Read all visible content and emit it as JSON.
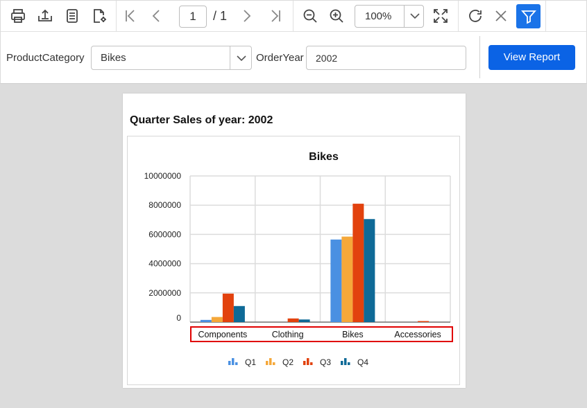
{
  "toolbar": {
    "page_current": "1",
    "page_total": "/ 1",
    "zoom": "100%"
  },
  "params": {
    "category_label": "ProductCategory",
    "category_value": "Bikes",
    "year_label": "OrderYear",
    "year_value": "2002",
    "view_button": "View Report"
  },
  "report": {
    "title": "Quarter Sales of year: 2002"
  },
  "colors": {
    "accent": "#1a73e8",
    "button": "#0b63e5",
    "highlight_box": "#e00000"
  },
  "chart_data": {
    "type": "bar",
    "title": "Bikes",
    "categories": [
      "Components",
      "Clothing",
      "Bikes",
      "Accessories"
    ],
    "series": [
      {
        "name": "Q1",
        "color": "#4a90e2",
        "values": [
          150000,
          0,
          5650000,
          0
        ]
      },
      {
        "name": "Q2",
        "color": "#f5a83a",
        "values": [
          350000,
          0,
          5850000,
          0
        ]
      },
      {
        "name": "Q3",
        "color": "#e2420e",
        "values": [
          1950000,
          250000,
          8100000,
          50000
        ]
      },
      {
        "name": "Q4",
        "color": "#0f6a97",
        "values": [
          1100000,
          180000,
          7050000,
          0
        ]
      }
    ],
    "ylim": [
      0,
      10000000
    ],
    "yticks": [
      "10000000",
      "8000000",
      "6000000",
      "4000000",
      "2000000",
      "0"
    ],
    "grid": true,
    "legend": "bottom"
  }
}
